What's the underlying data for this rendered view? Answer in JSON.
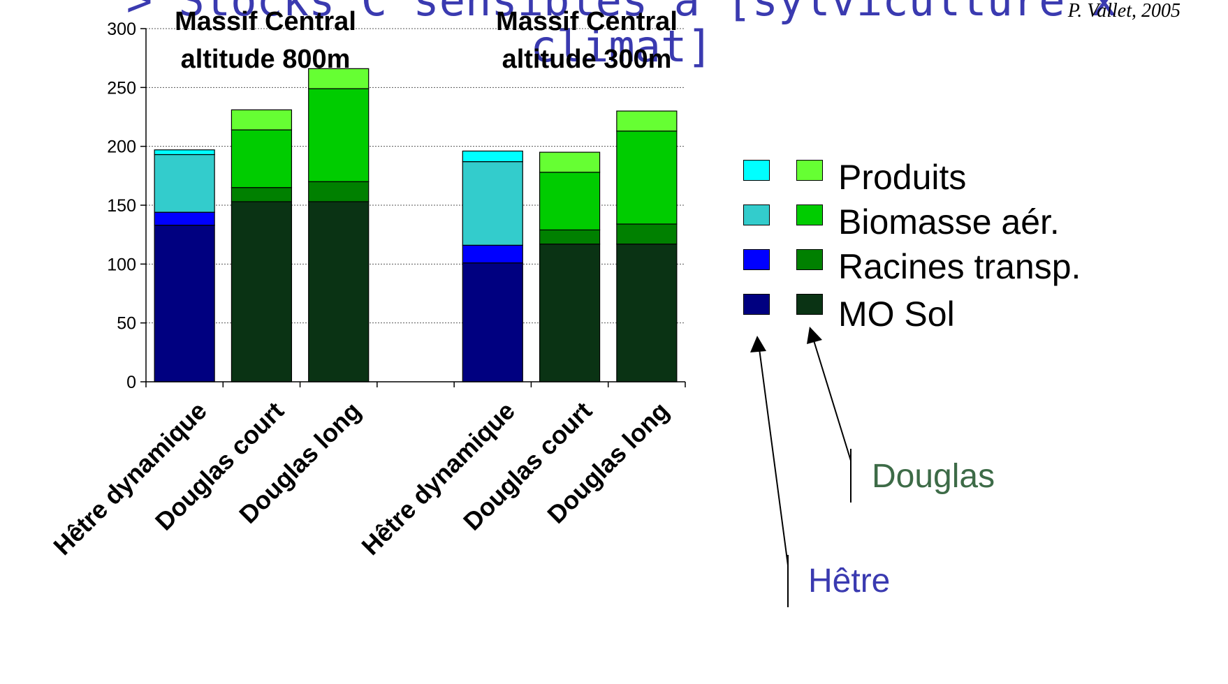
{
  "slide_title": "> Stocks C sensibles à [sylviculture x climat]",
  "source_credit": "P. Vallet, 2005",
  "legend": {
    "items": [
      {
        "label": "Produits",
        "hetre_color": "#00ffff",
        "douglas_color": "#66ff33"
      },
      {
        "label": "Biomasse aér.",
        "hetre_color": "#33cccc",
        "douglas_color": "#00cc00"
      },
      {
        "label": "Racines transp.",
        "hetre_color": "#0000ff",
        "douglas_color": "#008000"
      },
      {
        "label": "MO Sol",
        "hetre_color": "#000080",
        "douglas_color": "#0a3314"
      }
    ],
    "group_douglas": "Douglas",
    "group_hetre": "Hêtre"
  },
  "chart_data": {
    "type": "bar",
    "stacked": true,
    "ylim": [
      0,
      300
    ],
    "yticks": [
      0,
      50,
      100,
      150,
      200,
      250,
      300
    ],
    "grid": true,
    "panels": [
      {
        "title_line1": "Massif Central",
        "title_line2": "altitude 800m"
      },
      {
        "title_line1": "Massif Central",
        "title_line2": "altitude 300m"
      }
    ],
    "categories": [
      "Hêtre dynamique",
      "Douglas court",
      "Douglas long",
      "",
      "Hêtre dynamique",
      "Douglas court",
      "Douglas long"
    ],
    "bars": [
      {
        "species": "hetre",
        "panel": 0,
        "values": {
          "mo_sol": 133,
          "racines": 11,
          "biomasse": 49,
          "produits": 4
        }
      },
      {
        "species": "douglas",
        "panel": 0,
        "values": {
          "mo_sol": 153,
          "racines": 12,
          "biomasse": 49,
          "produits": 17
        }
      },
      {
        "species": "douglas",
        "panel": 0,
        "values": {
          "mo_sol": 153,
          "racines": 17,
          "biomasse": 79,
          "produits": 17
        }
      },
      null,
      {
        "species": "hetre",
        "panel": 1,
        "values": {
          "mo_sol": 101,
          "racines": 15,
          "biomasse": 71,
          "produits": 9
        }
      },
      {
        "species": "douglas",
        "panel": 1,
        "values": {
          "mo_sol": 117,
          "racines": 12,
          "biomasse": 49,
          "produits": 17
        }
      },
      {
        "species": "douglas",
        "panel": 1,
        "values": {
          "mo_sol": 117,
          "racines": 17,
          "biomasse": 79,
          "produits": 17
        }
      }
    ],
    "series": [
      {
        "key": "mo_sol",
        "name": "MO Sol"
      },
      {
        "key": "racines",
        "name": "Racines transp."
      },
      {
        "key": "biomasse",
        "name": "Biomasse aér."
      },
      {
        "key": "produits",
        "name": "Produits"
      }
    ],
    "colors": {
      "hetre": {
        "mo_sol": "#000080",
        "racines": "#0000ff",
        "biomasse": "#33cccc",
        "produits": "#00ffff"
      },
      "douglas": {
        "mo_sol": "#0a3314",
        "racines": "#008000",
        "biomasse": "#00cc00",
        "produits": "#66ff33"
      }
    },
    "gridline_color": "#555555"
  }
}
